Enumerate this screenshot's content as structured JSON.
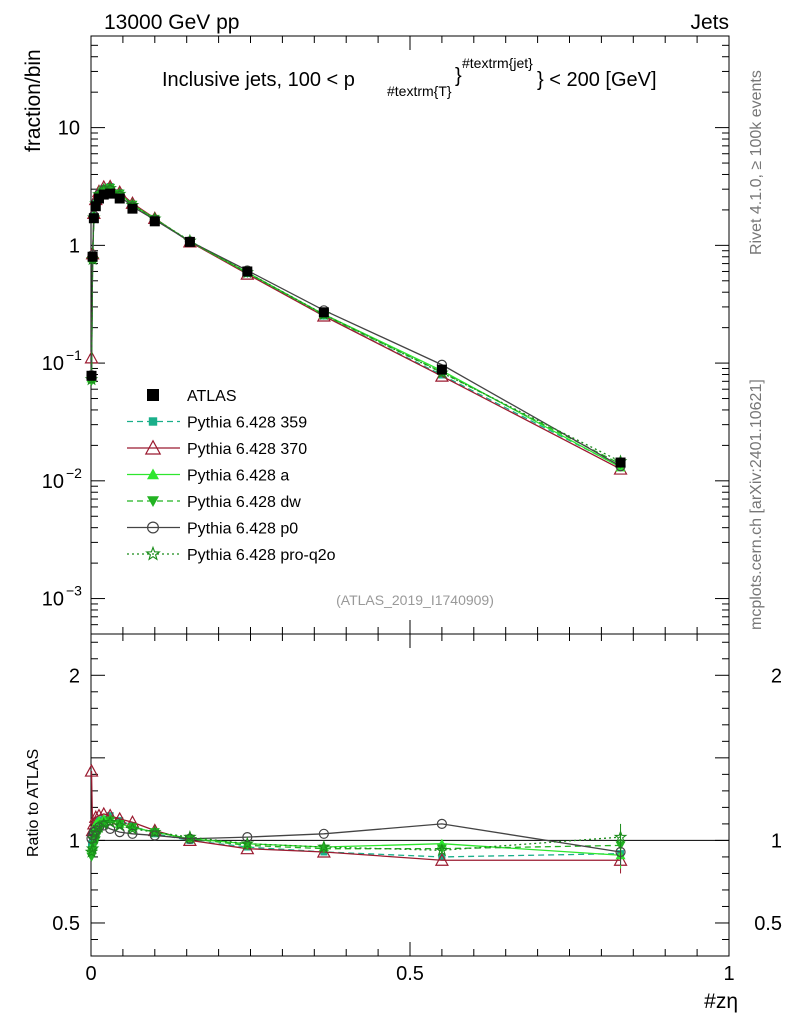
{
  "header": {
    "left_label": "13000 GeV pp",
    "right_label": "Jets"
  },
  "side_labels": {
    "top": "Rivet 4.1.0, ≥ 100k events",
    "bottom": "mcplots.cern.ch [arXiv:2401.10621]"
  },
  "chart_data": {
    "type": "line",
    "title_main": "Inclusive jets, 100 < p",
    "title_sub": "#textrm{T}",
    "title_sup": "#textrm{jet}",
    "title_tail": "} < 200 [GeV]",
    "analysis_tag": "(ATLAS_2019_I1740909)",
    "xlabel": "#zη",
    "ylabel": "fraction/bin",
    "ratio_ylabel": "Ratio to ATLAS",
    "xlim": [
      0,
      1
    ],
    "ylim": [
      0.0005,
      60
    ],
    "ratio_ylim": [
      0.3,
      2.25
    ],
    "x_ticks": [
      {
        "value": 0,
        "label": "0"
      },
      {
        "value": 0.5,
        "label": "0.5"
      },
      {
        "value": 1,
        "label": "1"
      }
    ],
    "y_ticks": [
      {
        "value": 0.001,
        "base": "10",
        "exp": "−3"
      },
      {
        "value": 0.01,
        "base": "10",
        "exp": "−2"
      },
      {
        "value": 0.1,
        "base": "10",
        "exp": "−1"
      },
      {
        "value": 1,
        "base": "1",
        "exp": ""
      },
      {
        "value": 10,
        "base": "10",
        "exp": ""
      }
    ],
    "ratio_ticks": [
      {
        "value": 0.5,
        "label": "0.5"
      },
      {
        "value": 1,
        "label": "1"
      },
      {
        "value": 2,
        "label": "2"
      }
    ],
    "x": [
      0.0008,
      0.0025,
      0.0045,
      0.0075,
      0.0125,
      0.02,
      0.03,
      0.045,
      0.065,
      0.1,
      0.155,
      0.245,
      0.365,
      0.55,
      0.83
    ],
    "data": {
      "name": "ATLAS",
      "values": [
        0.078,
        0.8,
        1.7,
        2.15,
        2.5,
        2.7,
        2.75,
        2.5,
        2.05,
        1.6,
        1.07,
        0.6,
        0.27,
        0.088,
        0.0143
      ]
    },
    "series": [
      {
        "name": "Pythia 6.428 359",
        "color": "#1aaf8a",
        "dash": "6,4",
        "marker": "square",
        "ratio": [
          0.98,
          1.0,
          1.05,
          1.1,
          1.12,
          1.13,
          1.15,
          1.12,
          1.09,
          1.04,
          1.0,
          0.96,
          0.93,
          0.9,
          0.92
        ]
      },
      {
        "name": "Pythia 6.428 370",
        "color": "#9b1b30",
        "dash": "",
        "marker": "triangle-open",
        "ratio": [
          1.42,
          1.06,
          1.1,
          1.14,
          1.15,
          1.16,
          1.15,
          1.13,
          1.11,
          1.06,
          1.0,
          0.95,
          0.93,
          0.88,
          0.88
        ]
      },
      {
        "name": "Pythia 6.428 a",
        "color": "#2ee62e",
        "dash": "",
        "marker": "triangle",
        "ratio": [
          0.95,
          0.97,
          1.06,
          1.1,
          1.12,
          1.13,
          1.13,
          1.1,
          1.08,
          1.05,
          1.01,
          0.98,
          0.96,
          0.98,
          0.91
        ]
      },
      {
        "name": "Pythia 6.428 dw",
        "color": "#22b322",
        "dash": "6,4",
        "marker": "triangle-down",
        "ratio": [
          0.9,
          0.93,
          0.97,
          1.0,
          1.05,
          1.1,
          1.12,
          1.1,
          1.08,
          1.05,
          1.01,
          0.97,
          0.95,
          0.95,
          0.97
        ]
      },
      {
        "name": "Pythia 6.428 p0",
        "color": "#444444",
        "dash": "",
        "marker": "circle-open",
        "ratio": [
          1.01,
          1.03,
          1.05,
          1.06,
          1.08,
          1.09,
          1.07,
          1.05,
          1.04,
          1.03,
          1.01,
          1.02,
          1.04,
          1.1,
          0.93
        ]
      },
      {
        "name": "Pythia 6.428 pro-q2o",
        "color": "#1a8c1a",
        "dash": "2,3",
        "marker": "star-open",
        "ratio": [
          0.93,
          0.95,
          1.01,
          1.05,
          1.08,
          1.1,
          1.11,
          1.09,
          1.07,
          1.05,
          1.02,
          0.98,
          0.96,
          0.94,
          1.02
        ]
      }
    ]
  }
}
